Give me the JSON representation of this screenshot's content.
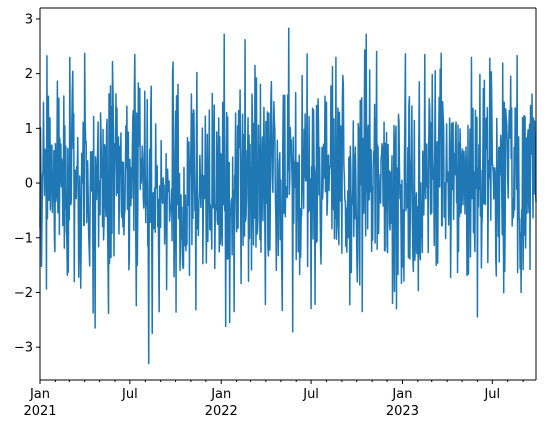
{
  "chart_data": {
    "type": "line",
    "title": "",
    "xlabel": "",
    "ylabel": "",
    "line_color": "#1f77b4",
    "grid": false,
    "legend": "none",
    "x_range": [
      "2021-01-01",
      "2023-09-27"
    ],
    "x_frequency": "daily",
    "ylim": [
      -3.6,
      3.2
    ],
    "y_ticks": [
      -3,
      -2,
      -1,
      0,
      1,
      2,
      3
    ],
    "y_tick_labels": [
      "−3",
      "−2",
      "−1",
      "0",
      "1",
      "2",
      "3"
    ],
    "x_major_ticks": [
      {
        "date": "2021-01-01",
        "label": "Jan",
        "year": "2021"
      },
      {
        "date": "2021-07-01",
        "label": "Jul",
        "year": ""
      },
      {
        "date": "2022-01-01",
        "label": "Jan",
        "year": "2022"
      },
      {
        "date": "2022-07-01",
        "label": "Jul",
        "year": ""
      },
      {
        "date": "2023-01-01",
        "label": "Jan",
        "year": "2023"
      },
      {
        "date": "2023-07-01",
        "label": "Jul",
        "year": ""
      }
    ],
    "series": [
      {
        "values_summary": "approximately standard-normal daily noise, values mostly between -2.5 and 2.5",
        "min": -3.3,
        "min_date": "2021-08-08",
        "max": 2.83,
        "max_date": "2022-05-17",
        "extremes": [
          {
            "date": "2021-08-08",
            "value": -3.3
          },
          {
            "date": "2021-08-15",
            "value": -2.75
          },
          {
            "date": "2021-04-22",
            "value": -2.65
          },
          {
            "date": "2022-01-10",
            "value": -2.62
          },
          {
            "date": "2022-01-18",
            "value": -2.55
          },
          {
            "date": "2022-05-25",
            "value": -2.72
          },
          {
            "date": "2022-10-12",
            "value": -2.35
          },
          {
            "date": "2022-12-20",
            "value": -2.3
          },
          {
            "date": "2023-08-28",
            "value": -2.0
          },
          {
            "date": "2021-04-01",
            "value": 2.37
          },
          {
            "date": "2021-07-11",
            "value": 2.35
          },
          {
            "date": "2022-01-07",
            "value": 2.72
          },
          {
            "date": "2022-02-18",
            "value": 2.62
          },
          {
            "date": "2022-05-17",
            "value": 2.83
          },
          {
            "date": "2022-08-20",
            "value": 2.3
          },
          {
            "date": "2022-10-20",
            "value": 2.72
          },
          {
            "date": "2023-08-20",
            "value": 2.33
          }
        ]
      }
    ]
  }
}
